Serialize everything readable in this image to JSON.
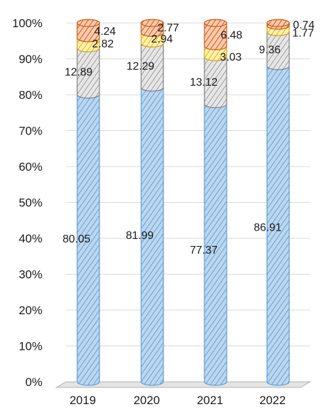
{
  "chart_data": {
    "type": "bar",
    "stacked": true,
    "percent_stacked": true,
    "categories": [
      "2019",
      "2020",
      "2021",
      "2022"
    ],
    "ylim": [
      0,
      100
    ],
    "yticks": [
      "0%",
      "10%",
      "20%",
      "30%",
      "40%",
      "50%",
      "60%",
      "70%",
      "80%",
      "90%",
      "100%"
    ],
    "grid": true,
    "legend": "none",
    "title": "",
    "xlabel": "",
    "ylabel": "",
    "series": [
      {
        "values": [
          80.05,
          81.99,
          77.37,
          86.91
        ],
        "labels": [
          "80.05",
          "81.99",
          "77.37",
          "86.91"
        ],
        "color": "#9cc3e6",
        "stroke": "#5b9bd5"
      },
      {
        "values": [
          12.89,
          12.29,
          13.12,
          9.36
        ],
        "labels": [
          "12.89",
          "12.29",
          "13.12",
          "9.36"
        ],
        "color": "#d9d9d9",
        "stroke": "#7f7f7f"
      },
      {
        "values": [
          2.82,
          2.94,
          3.03,
          1.77
        ],
        "labels": [
          "2.82",
          "2.94",
          "3.03",
          "1.77"
        ],
        "color": "#ffe699",
        "stroke": "#d4a017"
      },
      {
        "values": [
          4.24,
          2.77,
          6.48,
          0.74
        ],
        "labels": [
          "4.24",
          "2.77",
          "6.48",
          "0.74"
        ],
        "color": "#f4b183",
        "stroke": "#c55a11"
      }
    ]
  }
}
